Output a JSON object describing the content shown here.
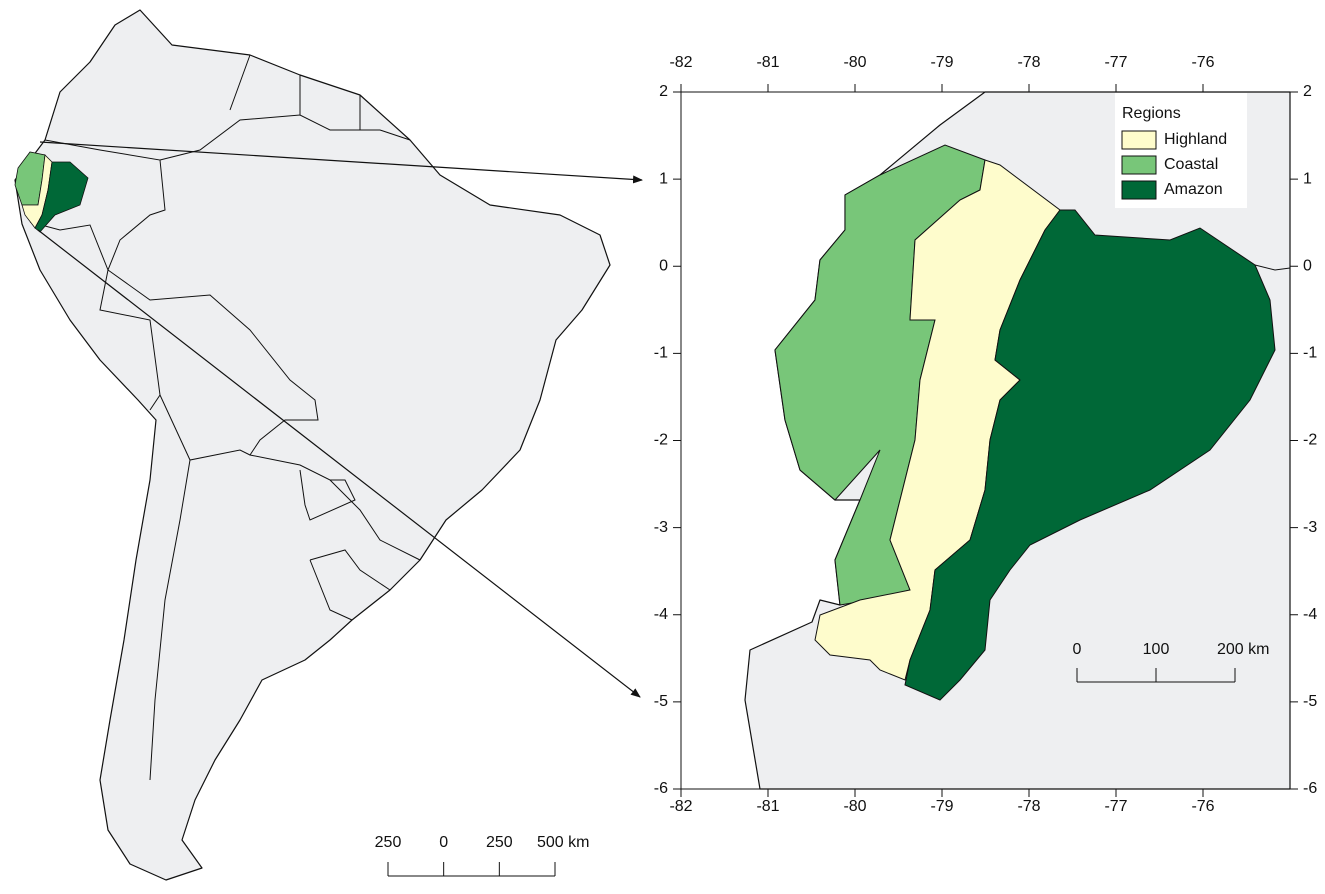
{
  "inset_map": {
    "xlim": [
      -82,
      -75
    ],
    "ylim": [
      -6,
      2
    ],
    "xticks": [
      -82,
      -81,
      -80,
      -79,
      -78,
      -77,
      -76
    ],
    "yticks": [
      2,
      1,
      0,
      -1,
      -2,
      -3,
      -4,
      -5,
      -6
    ],
    "legend": {
      "title": "Regions",
      "items": [
        {
          "label": "Highland",
          "color": "#fefccc"
        },
        {
          "label": "Coastal",
          "color": "#78c679"
        },
        {
          "label": "Amazon",
          "color": "#006837"
        }
      ]
    },
    "scale_bar": {
      "labels": [
        "0",
        "100",
        "200 km"
      ]
    }
  },
  "overview_map": {
    "scale_bar": {
      "labels": [
        "250",
        "0",
        "250",
        "500 km"
      ]
    }
  }
}
